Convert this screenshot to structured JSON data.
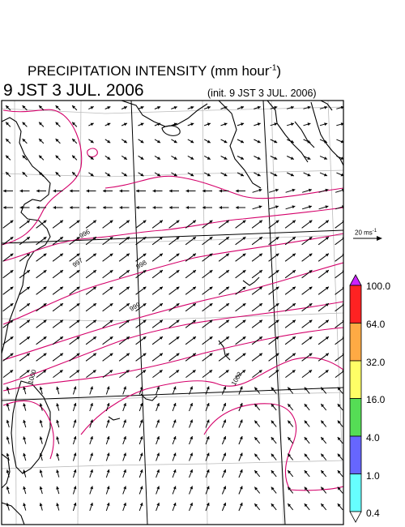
{
  "header": {
    "title_main": "PRECIPITATION INTENSITY (mm hour",
    "title_sup": "-1",
    "title_end": ")",
    "valid_time": "9 JST 3 JUL. 2006",
    "init_label": "(init. 9 JST 3 JUL. 2006)"
  },
  "wind_scale": {
    "label": "20 ms",
    "sup": "-1"
  },
  "colorbar": {
    "levels": [
      "0.4",
      "1.0",
      "4.0",
      "16.0",
      "32.0",
      "64.0",
      "100.0"
    ],
    "colors": [
      "#66ffff",
      "#6666ff",
      "#55dd55",
      "#ffff66",
      "#ffaa44",
      "#ff2222",
      "#cc22ff"
    ]
  },
  "isobars": {
    "labels": [
      "996",
      "997",
      "998",
      "999",
      "1000",
      "1002"
    ],
    "color": "#d4006a"
  },
  "colors": {
    "coast": "#000000",
    "grid": "#bbbbbb",
    "wind": "#000000"
  }
}
